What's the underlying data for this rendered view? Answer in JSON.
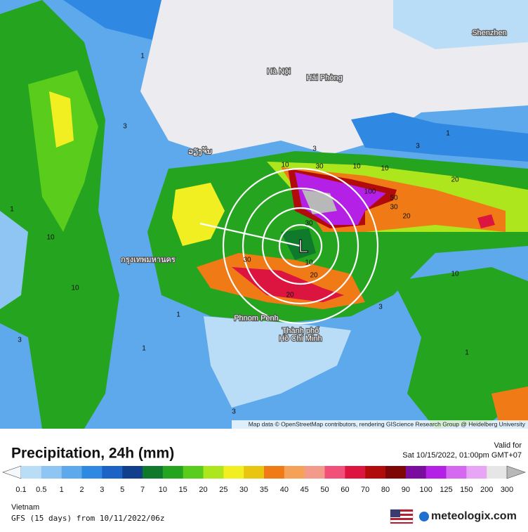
{
  "map": {
    "cities": [
      "Hà Nội",
      "Hải Phòng",
      "ວຽງຈັນ",
      "กรุงเทพมหานคร",
      "Phnom Penh",
      "Thành phố",
      "Hồ Chí Minh",
      "Shenzhen"
    ],
    "contour_labels": [
      "1",
      "3",
      "1",
      "3",
      "10",
      "3",
      "10",
      "30",
      "10",
      "20",
      "100",
      "50",
      "30",
      "20",
      "10",
      "30",
      "10",
      "20",
      "10",
      "20",
      "30",
      "3",
      "1",
      "1",
      "3",
      "10",
      "1",
      "3",
      "1"
    ],
    "low_marker": "L",
    "attribution": "Map data © OpenStreetMap contributors, rendering GIScience Research Group @ Heidelberg University"
  },
  "panel": {
    "title": "Precipitation, 24h (mm)",
    "valid_label": "Valid for",
    "valid_time": "Sat 10/15/2022, 01:00pm GMT+07",
    "legend_labels": [
      "0.1",
      "0.5",
      "1",
      "2",
      "3",
      "5",
      "7",
      "10",
      "15",
      "20",
      "25",
      "30",
      "35",
      "40",
      "45",
      "50",
      "60",
      "70",
      "80",
      "90",
      "100",
      "125",
      "150",
      "200",
      "300"
    ],
    "legend_colors": [
      "#f4f9ff",
      "#b9dcf7",
      "#8ec5f2",
      "#5ea8ec",
      "#2f88e2",
      "#1c63c6",
      "#123f8c",
      "#0f7a2c",
      "#25a51f",
      "#5acd1c",
      "#aee61d",
      "#f1ef22",
      "#e9c512",
      "#f07a16",
      "#f5a158",
      "#f39a8a",
      "#f0507a",
      "#dc1440",
      "#b20b0b",
      "#7e0606",
      "#7a0c9e",
      "#b520e6",
      "#d468f0",
      "#e8a4f5",
      "#e6e6e6",
      "#b8b8b8"
    ],
    "region": "Vietnam",
    "model_run": "GFS (15 days) from 10/11/2022/06z",
    "brand": "meteologix.com"
  }
}
